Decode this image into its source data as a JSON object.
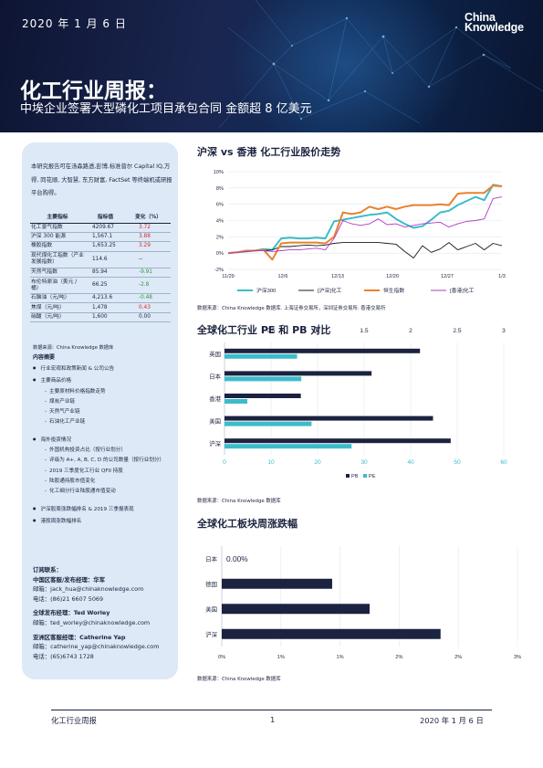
{
  "header": {
    "date": "2020 年 1 月 6 日",
    "logo_line1": "China",
    "logo_line2": "Knowledge",
    "title": "化工行业周报：",
    "subtitle": "中埃企业签署大型磷化工项目承包合同 金额超 8 亿美元"
  },
  "sidebar": {
    "intro": "本研究报告可在汤森路透,彭博,标准普尔 Capital IQ,万得, 同花顺, 大智慧, 东方财富, FactSet 等终端机或研报平台购得。",
    "table_headers": [
      "主要指标",
      "指标值",
      "变化（%）"
    ],
    "rows": [
      {
        "name": "化工景气指数",
        "value": "4209.67",
        "change": "3.72",
        "dir": "up"
      },
      {
        "name": "沪深 300 能源",
        "value": "1,567.1",
        "change": "3.88",
        "dir": "up"
      },
      {
        "name": "橡胶指数",
        "value": "1,653.25",
        "change": "3.29",
        "dir": "up"
      },
      {
        "name": "现代煤化工指数（产业发展指数）",
        "value": "114.6",
        "change": "--",
        "dir": "flat"
      },
      {
        "name": "天然气指数",
        "value": "85.94",
        "change": "-9.91",
        "dir": "down"
      },
      {
        "name": "布伦特原油（美元 / 桶）",
        "value": "66.25",
        "change": "-2.8",
        "dir": "down"
      },
      {
        "name": "石脑油（元/吨）",
        "value": "4,213.6",
        "change": "-0.48",
        "dir": "down"
      },
      {
        "name": "焦煤（元/吨）",
        "value": "1,478",
        "change": "0.43",
        "dir": "up"
      },
      {
        "name": "硝酸（元/吨）",
        "value": "1,600",
        "change": "0.00",
        "dir": "flat"
      }
    ],
    "table_source": "数据来源：China Knowledge 数据库",
    "toc_title": "内容摘要",
    "toc": [
      {
        "type": "b",
        "text": "行业宏观和政策新闻 & 公司公告"
      },
      {
        "type": "b",
        "text": "主要商品价格"
      },
      {
        "type": "s",
        "text": "主要原材料价格指数走势"
      },
      {
        "type": "s",
        "text": "煤炭产业链"
      },
      {
        "type": "s",
        "text": "天然气产业链"
      },
      {
        "type": "s",
        "text": "石油化工产业链"
      },
      {
        "type": "gap",
        "text": ""
      },
      {
        "type": "b",
        "text": "海外投资情况"
      },
      {
        "type": "s",
        "text": "外国机构投资占比（按行业划分）"
      },
      {
        "type": "s",
        "text": "评级为 A+, A, B, C, D 的公司数量（按行业划分）"
      },
      {
        "type": "s",
        "text": "2019 三季度化工行业 QFII 持股"
      },
      {
        "type": "s",
        "text": "陆股通持股市值变化"
      },
      {
        "type": "s",
        "text": "化工细分行业陆股通市值变动"
      },
      {
        "type": "gap",
        "text": ""
      },
      {
        "type": "b",
        "text": "沪深股周涨跌幅排名 & 2019 三季报表现"
      },
      {
        "type": "b",
        "text": "港股周涨跌幅排名"
      }
    ],
    "contacts": {
      "title": "订阅联系：",
      "groups": [
        {
          "head": "中国区客服/发布经理：华军",
          "email": "邮箱：jack_hua@chinaknowledge.com",
          "phone": "电话：(86)21 6607 5069"
        },
        {
          "head": "全球发布经理：Ted Worley",
          "email": "邮箱：ted_worley@chinaknowledge.com",
          "phone": ""
        },
        {
          "head": "亚洲区客服经理：Catherine Yap",
          "email": "邮箱：catherine_yap@chinaknowledge.com",
          "phone": "电话：(65)6743 1728"
        }
      ]
    }
  },
  "sections": {
    "chart1_title": "沪深 vs 香港 化工行业股价走势",
    "chart1_source": "数据来源：China Knowledge 数据库. 上海证券交易所，深圳证券交易所. 香港交易所",
    "chart2_title": "全球化工行业 PE 和 PB 对比",
    "chart2_source": "数据来源：China Knowledge 数据库",
    "chart3_title": "全球化工板块周涨跌幅",
    "chart3_source": "数据来源：China Knowledge 数据库"
  },
  "footer": {
    "left": "化工行业周报",
    "page": "1",
    "right": "2020 年 1 月 6 日"
  },
  "colors": {
    "navy": "#1c2340",
    "teal": "#3bbccb",
    "orange": "#e8822e",
    "purple": "#b239c6",
    "black": "#1a1a1a",
    "up": "#d62a2a",
    "down": "#2a9a45"
  },
  "chart_data": [
    {
      "type": "line",
      "title": "沪深 vs 香港 化工行业股价走势",
      "x_ticks": [
        "11/29",
        "12/6",
        "12/13",
        "12/20",
        "12/27",
        "1/3"
      ],
      "ylim": [
        -2,
        10
      ],
      "y_ticks": [
        "-2%",
        "0%",
        "2%",
        "4%",
        "6%",
        "8%",
        "10%"
      ],
      "series": [
        {
          "name": "沪深300",
          "color": "#3bbccb",
          "values": [
            0,
            0.1,
            0.2,
            0.3,
            0.5,
            0.4,
            1.8,
            1.9,
            1.8,
            1.8,
            1.9,
            1.8,
            3.9,
            4.1,
            4.3,
            4.5,
            4.7,
            4.8,
            5.0,
            4.2,
            3.6,
            3.1,
            3.3,
            4.1,
            5.0,
            5.2,
            5.9,
            6.4,
            6.9,
            6.5,
            8.4,
            8.2
          ]
        },
        {
          "name": "[沪深]化工",
          "color": "#1a1a1a",
          "values": [
            0,
            0.1,
            0.2,
            0.3,
            0.3,
            0.4,
            0.8,
            0.8,
            0.9,
            1.0,
            0.9,
            1.0,
            1.2,
            1.3,
            1.3,
            1.3,
            1.3,
            1.3,
            1.2,
            1.1,
            0.2,
            -0.6,
            0.9,
            0.1,
            0.5,
            1.3,
            0.4,
            0.8,
            1.2,
            0.4,
            1.2,
            0.9
          ]
        },
        {
          "name": "恒生指数",
          "color": "#e8822e",
          "values": [
            0,
            0.1,
            0.3,
            0.3,
            0.4,
            -0.8,
            1.2,
            1.3,
            1.3,
            1.3,
            1.3,
            1.2,
            2.0,
            5.0,
            4.8,
            5.0,
            5.7,
            5.4,
            5.7,
            5.4,
            5.7,
            5.9,
            5.9,
            5.9,
            6.0,
            5.9,
            7.3,
            7.4,
            7.4,
            7.4,
            8.3,
            8.2
          ]
        },
        {
          "name": "[香港]化工",
          "color": "#b239c6",
          "values": [
            0,
            0.1,
            0.2,
            0.3,
            0.3,
            0.2,
            0.3,
            0.4,
            0.4,
            0.5,
            0.6,
            0.4,
            1.8,
            4.0,
            3.6,
            3.4,
            3.6,
            4.2,
            3.5,
            3.6,
            3.2,
            3.4,
            3.6,
            3.7,
            3.8,
            3.2,
            3.6,
            3.9,
            4.0,
            4.2,
            6.7,
            6.9
          ]
        }
      ]
    },
    {
      "type": "bar",
      "title": "全球化工行业 PE 和 PB 对比",
      "categories": [
        "英国",
        "日本",
        "香港",
        "美国",
        "沪深"
      ],
      "series": [
        {
          "name": "PB",
          "color": "#1c2340",
          "values": [
            2.1,
            1.58,
            0.82,
            2.24,
            2.43
          ]
        },
        {
          "name": "PE",
          "color": "#3bbccb",
          "values": [
            15.6,
            16.5,
            4.9,
            18.7,
            27.3
          ]
        }
      ],
      "pb_axis": [
        0,
        3
      ],
      "pb_ticks": [
        "0",
        "0.5",
        "1",
        "1.5",
        "2",
        "2.5",
        "3"
      ],
      "pe_axis": [
        0,
        60
      ],
      "pe_ticks": [
        "0",
        "10",
        "20",
        "30",
        "40",
        "50",
        "60"
      ]
    },
    {
      "type": "bar",
      "title": "全球化工板块周涨跌幅",
      "categories": [
        "日本",
        "德国",
        "美国",
        "沪深"
      ],
      "values": [
        0.0,
        1.12,
        1.5,
        2.22
      ],
      "data_labels": [
        "0.00%",
        "",
        "",
        ""
      ],
      "xlim": [
        0,
        3
      ],
      "x_ticks": [
        "0%",
        "1%",
        "1%",
        "2%",
        "2%",
        "3%"
      ]
    }
  ]
}
